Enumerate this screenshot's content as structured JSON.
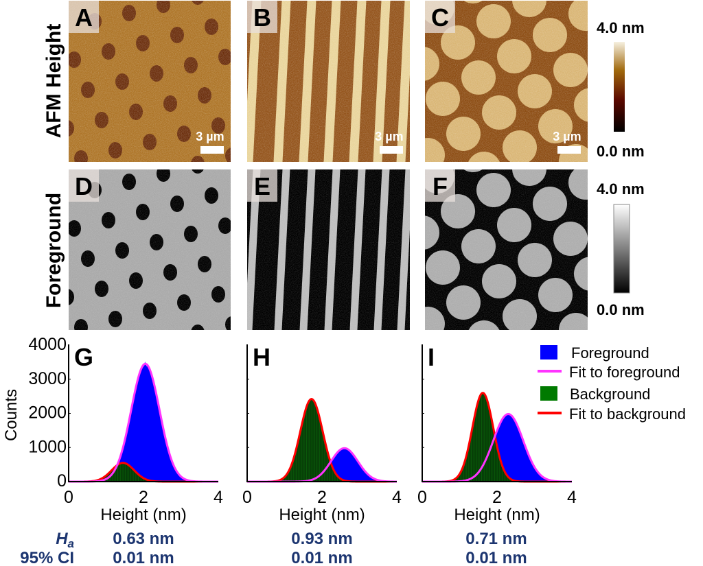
{
  "row_labels": {
    "top": "AFM Height",
    "middle": "Foreground"
  },
  "panels": {
    "images": [
      {
        "letter": "A",
        "pattern": "holes",
        "mode": "height",
        "scale_bar": "3 µm"
      },
      {
        "letter": "B",
        "pattern": "stripes",
        "mode": "height",
        "scale_bar": "3 µm"
      },
      {
        "letter": "C",
        "pattern": "discs",
        "mode": "height",
        "scale_bar": "3 µm"
      },
      {
        "letter": "D",
        "pattern": "holes",
        "mode": "foreground"
      },
      {
        "letter": "E",
        "pattern": "stripes",
        "mode": "foreground"
      },
      {
        "letter": "F",
        "pattern": "discs",
        "mode": "foreground"
      }
    ],
    "colorbars": [
      {
        "max_label": "4.0 nm",
        "min_label": "0.0 nm",
        "colormap": [
          "#000000",
          "#5a0800",
          "#a0680c",
          "#f6f0e0"
        ]
      },
      {
        "max_label": "4.0 nm",
        "min_label": "0.0 nm",
        "colormap": [
          "#000000",
          "#ffffff"
        ]
      }
    ]
  },
  "colors": {
    "foreground": "#0000ff",
    "fit_foreground": "#ff33ff",
    "background": "#007a00",
    "fit_background": "#ff0000",
    "value_text": "#1c3570"
  },
  "chart_data": [
    {
      "type": "bar",
      "panel": "G",
      "xlabel": "Height (nm)",
      "ylabel": "Counts",
      "xlim": [
        0,
        4
      ],
      "ylim": [
        0,
        4000
      ],
      "xticks": [
        "0",
        "2",
        "4"
      ],
      "yticks": [
        "0",
        "1000",
        "2000",
        "3000",
        "4000"
      ],
      "series": [
        {
          "name": "Foreground",
          "kind": "gaussian",
          "mean": 2.05,
          "sigma": 0.38,
          "peak": 3450
        },
        {
          "name": "Background",
          "kind": "gaussian",
          "mean": 1.45,
          "sigma": 0.3,
          "peak": 550
        }
      ]
    },
    {
      "type": "bar",
      "panel": "H",
      "xlabel": "Height (nm)",
      "xlim": [
        0,
        4
      ],
      "ylim": [
        0,
        4000
      ],
      "xticks": [
        "0",
        "2",
        "4"
      ],
      "series": [
        {
          "name": "Foreground",
          "kind": "gaussian",
          "mean": 2.6,
          "sigma": 0.36,
          "peak": 980
        },
        {
          "name": "Background",
          "kind": "gaussian",
          "mean": 1.72,
          "sigma": 0.3,
          "peak": 2420
        }
      ]
    },
    {
      "type": "bar",
      "panel": "I",
      "xlabel": "Height (nm)",
      "xlim": [
        0,
        4
      ],
      "ylim": [
        0,
        4000
      ],
      "xticks": [
        "0",
        "2",
        "4"
      ],
      "series": [
        {
          "name": "Foreground",
          "kind": "gaussian",
          "mean": 2.3,
          "sigma": 0.4,
          "peak": 1980
        },
        {
          "name": "Background",
          "kind": "gaussian",
          "mean": 1.62,
          "sigma": 0.28,
          "peak": 2600
        }
      ]
    }
  ],
  "legend": {
    "placement": "right",
    "items": [
      "Foreground",
      "Fit to foreground",
      "Background",
      "Fit to background"
    ]
  },
  "stats": {
    "ha_label": "H",
    "ha_sub": "a",
    "ci_label": "95% CI",
    "ha_values": [
      "0.63 nm",
      "0.93 nm",
      "0.71 nm"
    ],
    "ci_values": [
      "0.01 nm",
      "0.01 nm",
      "0.01 nm"
    ]
  }
}
